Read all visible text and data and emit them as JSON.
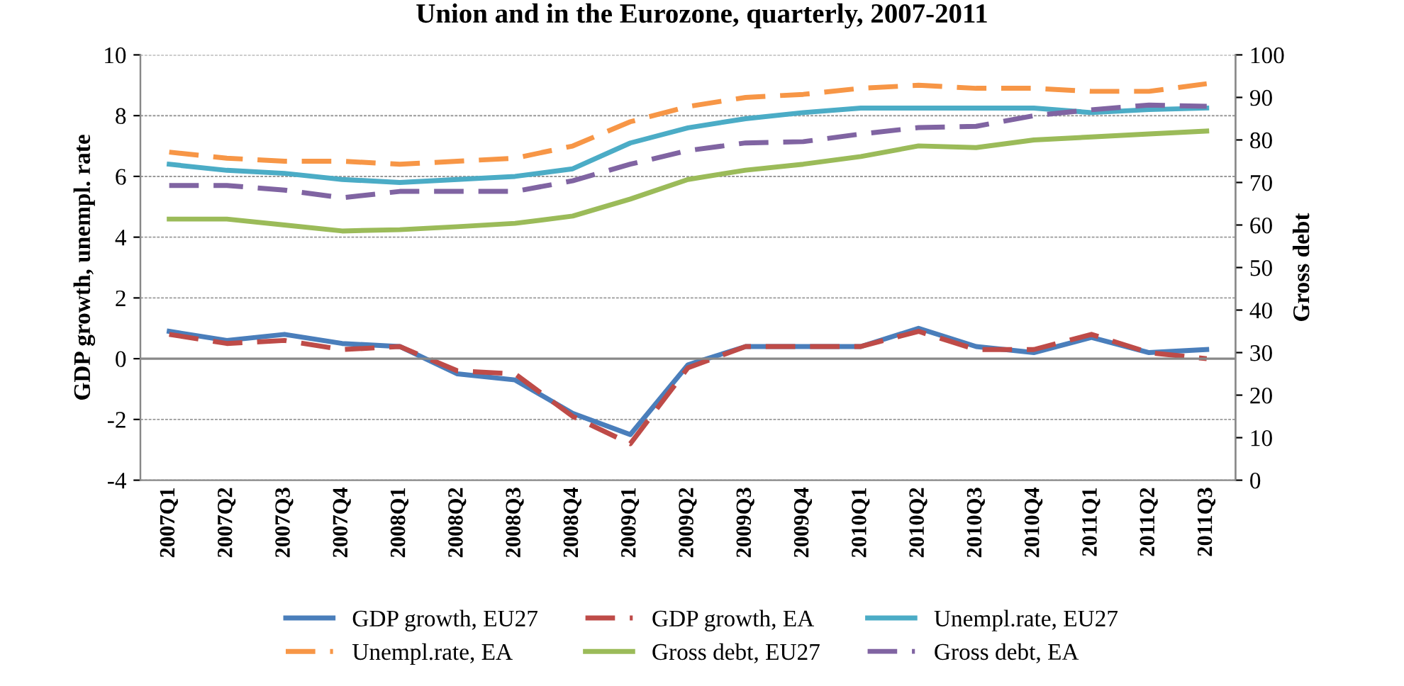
{
  "chart_data": {
    "type": "line",
    "title": "Union and in the Eurozone, quarterly, 2007-2011",
    "ylabel": "GDP growth, unempl. rate",
    "y2label": "Gross debt",
    "categories": [
      "2007Q1",
      "2007Q2",
      "2007Q3",
      "2007Q4",
      "2008Q1",
      "2008Q2",
      "2008Q3",
      "2008Q4",
      "2009Q1",
      "2009Q2",
      "2009Q3",
      "2009Q4",
      "2010Q1",
      "2010Q2",
      "2010Q3",
      "2010Q4",
      "2011Q1",
      "2011Q2",
      "2011Q3"
    ],
    "series": [
      {
        "name": "GDP growth, EU27",
        "color": "#4a7ebb",
        "line_style": "solid",
        "values": [
          0.9,
          0.6,
          0.8,
          0.5,
          0.4,
          -0.5,
          -0.7,
          -1.8,
          -2.5,
          -0.2,
          0.4,
          0.4,
          0.4,
          1.0,
          0.4,
          0.2,
          0.7,
          0.2,
          0.3
        ]
      },
      {
        "name": "GDP growth, EA",
        "color": "#be4b48",
        "line_style": "dashed",
        "values": [
          0.8,
          0.5,
          0.6,
          0.3,
          0.4,
          -0.4,
          -0.5,
          -1.9,
          -2.8,
          -0.3,
          0.4,
          0.4,
          0.4,
          0.9,
          0.3,
          0.3,
          0.8,
          0.2,
          0.0
        ]
      },
      {
        "name": "Unempl.rate, EU27",
        "color": "#4bacc6",
        "line_style": "solid",
        "values": [
          6.4,
          6.2,
          6.1,
          5.9,
          5.8,
          5.9,
          6.0,
          6.25,
          7.1,
          7.6,
          7.9,
          8.1,
          8.25,
          8.25,
          8.25,
          8.25,
          8.1,
          8.2,
          8.25
        ]
      },
      {
        "name": "Unempl.rate, EA",
        "color": "#f79646",
        "line_style": "dashed",
        "values": [
          6.8,
          6.6,
          6.5,
          6.5,
          6.4,
          6.5,
          6.6,
          7.0,
          7.8,
          8.3,
          8.6,
          8.7,
          8.9,
          9.0,
          8.9,
          8.9,
          8.8,
          8.8,
          9.05
        ]
      },
      {
        "name": "Gross debt, EU27",
        "color": "#9bbb59",
        "line_style": "solid",
        "axis": "y2",
        "values": [
          61.4,
          61.4,
          60.0,
          58.6,
          58.9,
          59.6,
          60.4,
          62.1,
          66.1,
          70.7,
          72.9,
          74.3,
          76.1,
          78.6,
          78.2,
          80.0,
          80.7,
          81.4,
          82.1
        ]
      },
      {
        "name": "Gross debt, EA",
        "color": "#8064a2",
        "line_style": "dashed",
        "axis": "y2",
        "values": [
          69.3,
          69.3,
          68.2,
          66.4,
          67.9,
          67.9,
          67.9,
          70.4,
          74.3,
          77.5,
          79.3,
          79.6,
          81.4,
          82.9,
          83.2,
          85.7,
          87.1,
          88.2,
          87.9
        ]
      }
    ],
    "ylim": [
      -4,
      10
    ],
    "yticks": [
      -4,
      -2,
      0,
      2,
      4,
      6,
      8,
      10
    ],
    "y2lim": [
      0,
      100
    ],
    "y2ticks": [
      0,
      10,
      20,
      30,
      40,
      50,
      60,
      70,
      80,
      90,
      100
    ],
    "grid": "y",
    "legend": "bottom",
    "marker": "none"
  }
}
